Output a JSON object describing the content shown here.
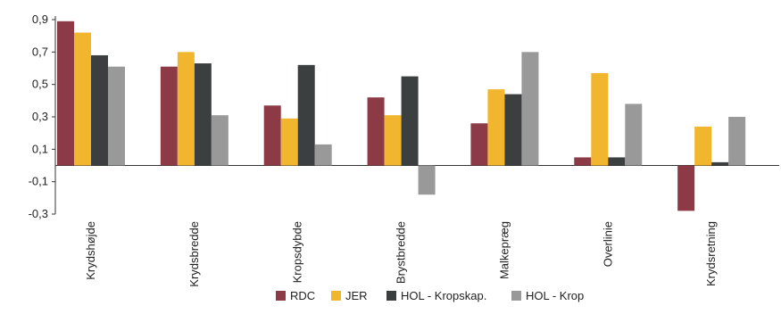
{
  "chart_data": {
    "type": "bar",
    "title": "",
    "xlabel": "",
    "ylabel": "",
    "ylim": [
      -0.3,
      0.9
    ],
    "yticks": [
      0.9,
      0.7,
      0.5,
      0.3,
      0.1,
      -0.1,
      -0.3
    ],
    "ytick_labels": [
      "0,9",
      "0,7",
      "0,5",
      "0,3",
      "0,1",
      "-0,1",
      "-0,3"
    ],
    "grid": false,
    "legend_position": "bottom",
    "categories": [
      "Krydshøjde",
      "Krydsbredde",
      "Kropsdybde",
      "Brystbredde",
      "Malkepræg",
      "Overlinie",
      "Krydsretning"
    ],
    "series": [
      {
        "name": "RDC",
        "color": "#8b3a46",
        "values": [
          0.89,
          0.61,
          0.37,
          0.42,
          0.26,
          0.05,
          -0.28
        ]
      },
      {
        "name": "JER",
        "color": "#f2b52e",
        "values": [
          0.82,
          0.7,
          0.29,
          0.31,
          0.47,
          0.57,
          0.24
        ]
      },
      {
        "name": "HOL - Kropskap.",
        "color": "#3b3f3f",
        "values": [
          0.68,
          0.63,
          0.62,
          0.55,
          0.44,
          0.05,
          0.02
        ]
      },
      {
        "name": "HOL - Krop",
        "color": "#999999",
        "values": [
          0.61,
          0.31,
          0.13,
          -0.18,
          0.7,
          0.38,
          0.3
        ]
      }
    ]
  }
}
